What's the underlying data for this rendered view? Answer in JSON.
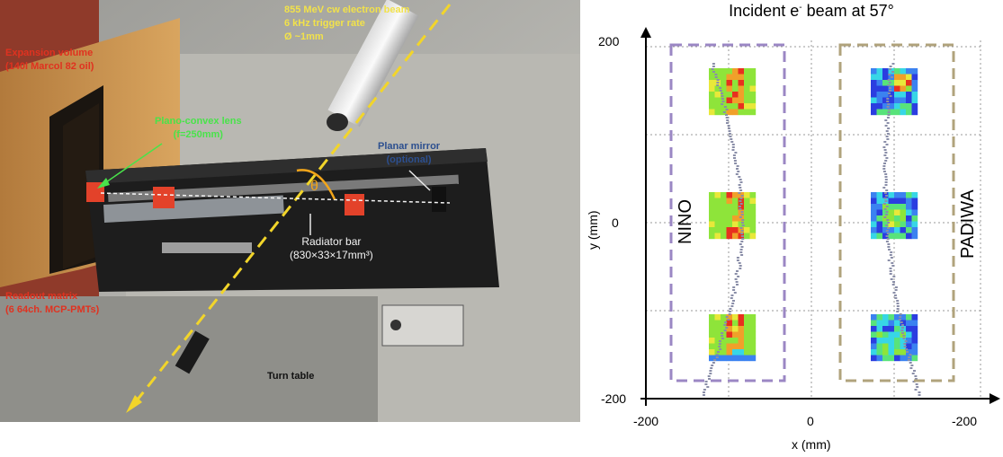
{
  "photo": {
    "beam": [
      "855 MeV cw electron beam",
      "6 kHz trigger rate",
      "Ø ~1mm"
    ],
    "expansion": [
      "Expansion volume",
      "(140l Marcol 82 oil)"
    ],
    "lens": [
      "Plano-convex lens",
      "(f=250mm)"
    ],
    "mirror": [
      "Planar mirror",
      "(optional)"
    ],
    "theta": "θ",
    "radiator": [
      "Radiator bar",
      "(830×33×17mm³)"
    ],
    "readout": [
      "Readout matrix",
      "(6 64ch. MCP-PMTs)"
    ],
    "turntable": "Turn table"
  },
  "plot": {
    "title_main": "Incident e",
    "title_sup": "-",
    "title_end": " beam at 57°",
    "xlabel": "x (mm)",
    "ylabel": "y (mm)",
    "xticks": [
      "-200",
      "0",
      "-200"
    ],
    "yticks": [
      "200",
      "0",
      "-200"
    ],
    "nino_label": "NINO",
    "padiwa_label": "PADIWA",
    "colors": {
      "nino_box": "#9b87c4",
      "padiwa_box": "#b0a37c",
      "hits": "#8a8ea8"
    }
  }
}
